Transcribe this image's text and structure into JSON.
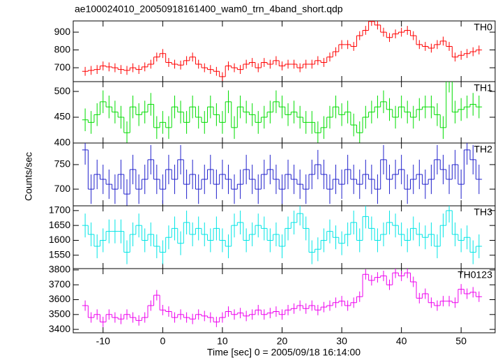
{
  "chart_data": {
    "type": "step",
    "title": "ae100024010_20050918161400_wam0_trn_4band_short.qdp",
    "xlabel": "Time [sec] 0 = 2005/09/18 16:14:00",
    "ylabel": "Counts/sec",
    "x": [
      -13,
      -12,
      -11,
      -10,
      -9,
      -8,
      -7,
      -6,
      -5,
      -4,
      -3,
      -2,
      -1,
      0,
      1,
      2,
      3,
      4,
      5,
      6,
      7,
      8,
      9,
      10,
      11,
      12,
      13,
      14,
      15,
      16,
      17,
      18,
      19,
      20,
      21,
      22,
      23,
      24,
      25,
      26,
      27,
      28,
      29,
      30,
      31,
      32,
      33,
      34,
      35,
      36,
      37,
      38,
      39,
      40,
      41,
      42,
      43,
      44,
      45,
      46,
      47,
      48,
      49,
      50,
      51,
      52,
      53
    ],
    "xlim": [
      -15,
      55.7
    ],
    "xticks": [
      -10,
      0,
      10,
      20,
      30,
      40,
      50
    ],
    "panels": [
      {
        "name": "TH0",
        "color": "#ff0000",
        "error": 25,
        "ylim": [
          622,
          963
        ],
        "yticks": [
          700,
          800,
          900
        ],
        "values": [
          680,
          685,
          690,
          710,
          705,
          700,
          690,
          685,
          700,
          690,
          705,
          720,
          760,
          780,
          730,
          720,
          715,
          740,
          760,
          720,
          700,
          690,
          680,
          650,
          710,
          700,
          690,
          720,
          730,
          700,
          730,
          720,
          740,
          710,
          720,
          720,
          700,
          720,
          720,
          740,
          730,
          760,
          790,
          830,
          830,
          820,
          880,
          910,
          960,
          940,
          900,
          870,
          890,
          900,
          910,
          880,
          830,
          820,
          810,
          830,
          850,
          820,
          760,
          770,
          780,
          790,
          800
        ]
      },
      {
        "name": "TH1",
        "color": "#00dd00",
        "error": 22,
        "ylim": [
          400,
          519
        ],
        "yticks": [
          400,
          450,
          500
        ],
        "values": [
          445,
          440,
          455,
          480,
          470,
          460,
          450,
          420,
          470,
          455,
          460,
          475,
          430,
          440,
          430,
          470,
          460,
          440,
          470,
          450,
          440,
          470,
          455,
          440,
          480,
          430,
          470,
          460,
          455,
          440,
          450,
          460,
          480,
          470,
          455,
          460,
          450,
          440,
          440,
          420,
          430,
          450,
          470,
          455,
          460,
          435,
          420,
          450,
          460,
          470,
          480,
          465,
          450,
          470,
          460,
          450,
          465,
          470,
          470,
          455,
          430,
          520,
          460,
          465,
          470,
          475,
          470
        ]
      },
      {
        "name": "TH2",
        "color": "#2020cc",
        "error": 30,
        "ylim": [
          666,
          794
        ],
        "yticks": [
          700,
          750
        ],
        "values": [
          780,
          700,
          730,
          720,
          710,
          700,
          730,
          690,
          740,
          700,
          720,
          760,
          720,
          700,
          740,
          720,
          760,
          710,
          730,
          700,
          720,
          740,
          710,
          730,
          720,
          700,
          710,
          740,
          720,
          700,
          730,
          740,
          720,
          700,
          730,
          720,
          710,
          700,
          730,
          750,
          730,
          700,
          720,
          710,
          740,
          720,
          710,
          730,
          720,
          700,
          760,
          720,
          730,
          740,
          700,
          720,
          730,
          710,
          720,
          760,
          740,
          720,
          750,
          710,
          780,
          760,
          720
        ]
      },
      {
        "name": "TH3",
        "color": "#00e5e5",
        "error": 40,
        "ylim": [
          1505,
          1716
        ],
        "yticks": [
          1550,
          1600,
          1650,
          1700
        ],
        "values": [
          1650,
          1620,
          1580,
          1600,
          1630,
          1630,
          1630,
          1560,
          1620,
          1650,
          1600,
          1620,
          1580,
          1560,
          1610,
          1640,
          1590,
          1660,
          1620,
          1640,
          1620,
          1600,
          1640,
          1600,
          1580,
          1650,
          1660,
          1600,
          1620,
          1650,
          1640,
          1600,
          1620,
          1580,
          1640,
          1660,
          1690,
          1640,
          1560,
          1570,
          1600,
          1630,
          1610,
          1590,
          1620,
          1660,
          1600,
          1680,
          1640,
          1600,
          1620,
          1660,
          1650,
          1620,
          1600,
          1640,
          1620,
          1610,
          1620,
          1580,
          1650,
          1700,
          1620,
          1600,
          1610,
          1560,
          1580
        ]
      },
      {
        "name": "TH0123",
        "color": "#ee00ee",
        "error": 35,
        "ylim": [
          3377,
          3809
        ],
        "yticks": [
          3400,
          3500,
          3600,
          3700,
          3800
        ],
        "values": [
          3560,
          3480,
          3500,
          3450,
          3500,
          3480,
          3470,
          3500,
          3480,
          3460,
          3480,
          3560,
          3630,
          3530,
          3520,
          3480,
          3500,
          3480,
          3470,
          3500,
          3490,
          3480,
          3450,
          3480,
          3520,
          3500,
          3510,
          3490,
          3500,
          3530,
          3500,
          3510,
          3520,
          3500,
          3530,
          3540,
          3560,
          3540,
          3560,
          3530,
          3550,
          3560,
          3580,
          3590,
          3560,
          3580,
          3620,
          3770,
          3730,
          3750,
          3760,
          3700,
          3780,
          3760,
          3780,
          3720,
          3610,
          3640,
          3580,
          3560,
          3590,
          3590,
          3580,
          3670,
          3640,
          3650,
          3620
        ]
      }
    ]
  }
}
